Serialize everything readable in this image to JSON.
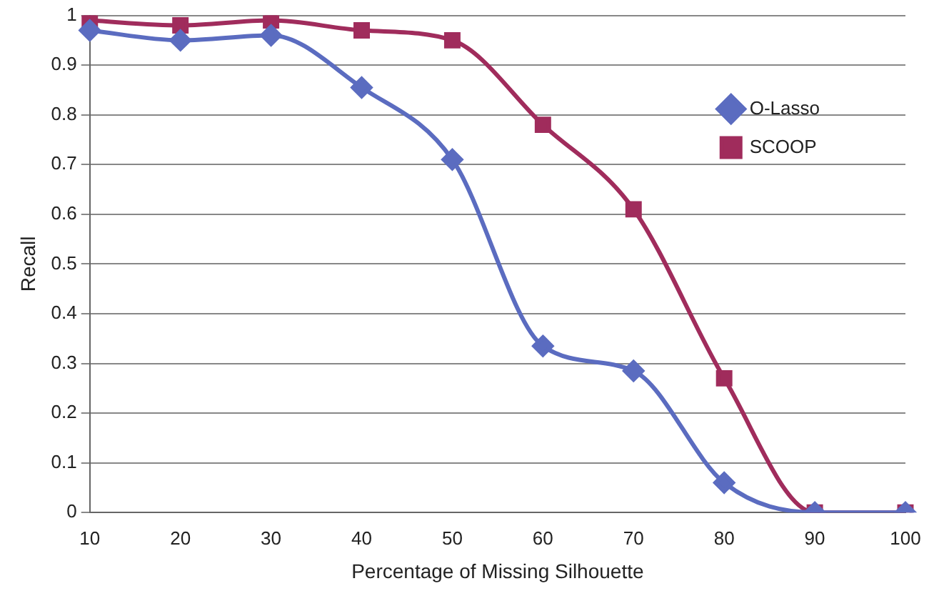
{
  "chart_data": {
    "type": "line",
    "xlabel": "Percentage of Missing Silhouette",
    "ylabel": "Recall",
    "categories": [
      "10",
      "20",
      "30",
      "40",
      "50",
      "60",
      "70",
      "80",
      "90",
      "100"
    ],
    "series": [
      {
        "name": "O-Lasso",
        "color": "#5b6cc0",
        "marker": "diamond",
        "values": [
          0.97,
          0.95,
          0.96,
          0.855,
          0.71,
          0.335,
          0.285,
          0.06,
          0,
          0
        ]
      },
      {
        "name": "SCOOP",
        "color": "#a02c5c",
        "marker": "square",
        "values": [
          0.99,
          0.98,
          0.99,
          0.97,
          0.95,
          0.78,
          0.61,
          0.27,
          0,
          0
        ]
      }
    ],
    "ylim": [
      0,
      1
    ],
    "yticks": [
      0,
      0.1,
      0.2,
      0.3,
      0.4,
      0.5,
      0.6,
      0.7,
      0.8,
      0.9,
      1
    ],
    "grid": "y",
    "legend": "top right"
  }
}
